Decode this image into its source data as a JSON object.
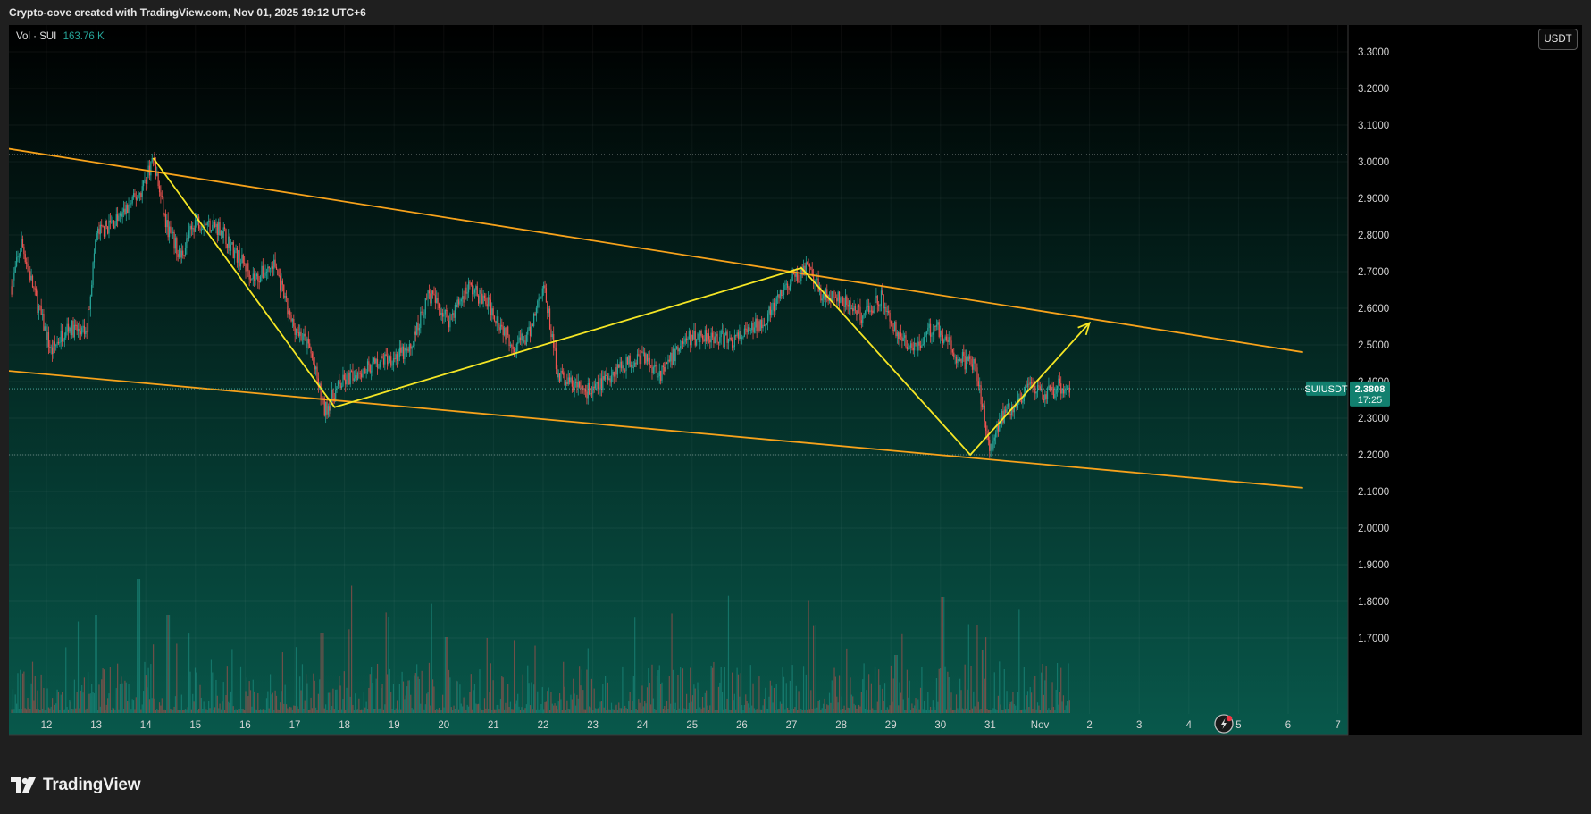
{
  "header": {
    "caption": "Crypto-cove created with TradingView.com, Nov 01, 2025 19:12 UTC+6"
  },
  "legend": {
    "name": "Vol · SUI",
    "value": "163.76 K"
  },
  "currency_button": "USDT",
  "price_badge": {
    "symbol": "SUIUSDT",
    "price": "2.3808",
    "countdown": "17:25"
  },
  "brand": "TradingView",
  "colors": {
    "up": "#26a69a",
    "down": "#ef5350",
    "channel": "#f7a21b",
    "path": "#f5e625",
    "bg_top": "#000000",
    "bg_bottom": "#08584b",
    "badge": "#12806f"
  },
  "chart_data": {
    "type": "candlestick",
    "symbol": "SUIUSDT",
    "x_labels": [
      "12",
      "13",
      "14",
      "15",
      "16",
      "17",
      "18",
      "19",
      "20",
      "21",
      "22",
      "23",
      "24",
      "25",
      "26",
      "27",
      "28",
      "29",
      "30",
      "31",
      "Nov",
      "2",
      "3",
      "4",
      "5",
      "6",
      "7"
    ],
    "y_ticks": [
      "3.3000",
      "3.2000",
      "3.1000",
      "3.0000",
      "2.9000",
      "2.8000",
      "2.7000",
      "2.6000",
      "2.5000",
      "2.4000",
      "2.3000",
      "2.2000",
      "2.1000",
      "2.0000",
      "1.9000",
      "1.8000",
      "1.7000"
    ],
    "ylim": [
      1.68,
      3.33
    ],
    "last_price": 2.3808,
    "price_path": [
      [
        11.3,
        2.66
      ],
      [
        11.5,
        2.78
      ],
      [
        11.8,
        2.62
      ],
      [
        12.1,
        2.48
      ],
      [
        12.4,
        2.55
      ],
      [
        12.8,
        2.53
      ],
      [
        13.0,
        2.8
      ],
      [
        13.5,
        2.85
      ],
      [
        13.9,
        2.92
      ],
      [
        14.15,
        3.01
      ],
      [
        14.4,
        2.83
      ],
      [
        14.7,
        2.74
      ],
      [
        15.0,
        2.84
      ],
      [
        15.5,
        2.82
      ],
      [
        15.8,
        2.75
      ],
      [
        16.2,
        2.68
      ],
      [
        16.6,
        2.72
      ],
      [
        16.9,
        2.57
      ],
      [
        17.3,
        2.49
      ],
      [
        17.6,
        2.32
      ],
      [
        17.9,
        2.39
      ],
      [
        18.3,
        2.43
      ],
      [
        18.8,
        2.46
      ],
      [
        19.3,
        2.48
      ],
      [
        19.7,
        2.64
      ],
      [
        20.1,
        2.57
      ],
      [
        20.5,
        2.66
      ],
      [
        20.9,
        2.61
      ],
      [
        21.4,
        2.5
      ],
      [
        21.7,
        2.52
      ],
      [
        22.0,
        2.67
      ],
      [
        22.3,
        2.42
      ],
      [
        22.6,
        2.39
      ],
      [
        23.0,
        2.37
      ],
      [
        23.5,
        2.44
      ],
      [
        24.0,
        2.47
      ],
      [
        24.4,
        2.42
      ],
      [
        24.8,
        2.51
      ],
      [
        25.3,
        2.53
      ],
      [
        25.8,
        2.51
      ],
      [
        26.2,
        2.54
      ],
      [
        26.6,
        2.59
      ],
      [
        26.9,
        2.66
      ],
      [
        27.3,
        2.71
      ],
      [
        27.6,
        2.64
      ],
      [
        28.0,
        2.62
      ],
      [
        28.4,
        2.58
      ],
      [
        28.8,
        2.63
      ],
      [
        29.2,
        2.51
      ],
      [
        29.6,
        2.5
      ],
      [
        29.9,
        2.56
      ],
      [
        30.3,
        2.47
      ],
      [
        30.7,
        2.44
      ],
      [
        31.0,
        2.22
      ],
      [
        31.2,
        2.3
      ],
      [
        31.5,
        2.34
      ],
      [
        31.8,
        2.38
      ],
      [
        32.1,
        2.36
      ],
      [
        32.4,
        2.39
      ],
      [
        32.6,
        2.38
      ]
    ],
    "drawings": {
      "channel_upper": {
        "start": [
          10.55,
          3.05
        ],
        "end": [
          37.3,
          2.48
        ]
      },
      "channel_lower": {
        "start": [
          10.35,
          2.44
        ],
        "end": [
          37.3,
          2.11
        ]
      },
      "zigzag": [
        [
          14.15,
          3.01
        ],
        [
          17.8,
          2.33
        ],
        [
          27.2,
          2.71
        ],
        [
          30.6,
          2.2
        ],
        [
          33.0,
          2.56
        ]
      ],
      "dotted_levels": [
        3.02,
        2.38,
        2.2
      ]
    }
  }
}
